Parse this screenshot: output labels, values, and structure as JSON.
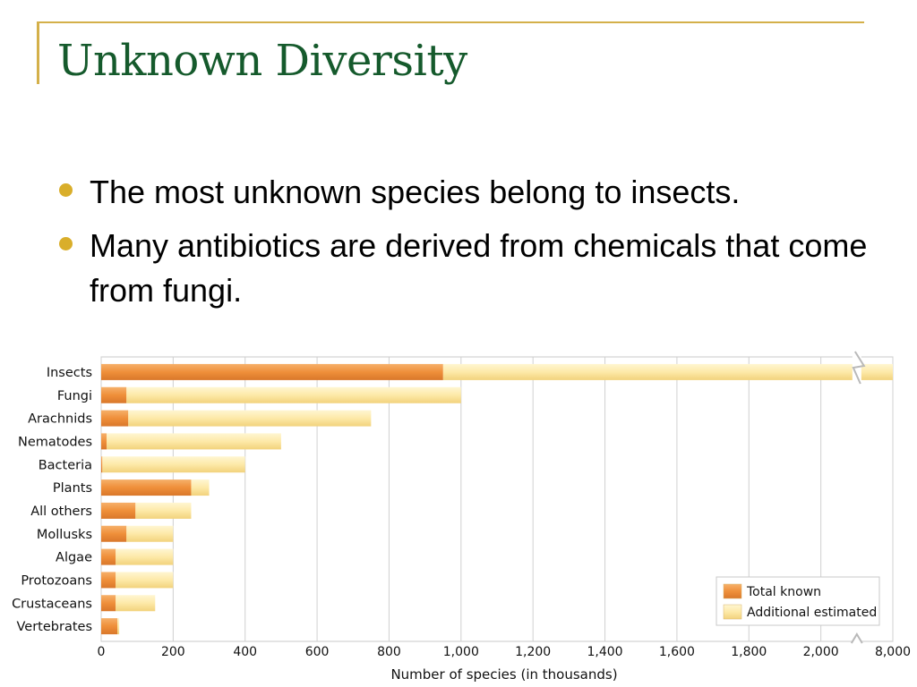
{
  "slide": {
    "title": "Unknown Diversity",
    "bullets": [
      "The most unknown species belong to insects.",
      "Many antibiotics are derived from chemicals that come from fungi."
    ]
  },
  "colors": {
    "title": "#155a2c",
    "frame": "#d4b04a",
    "bullet": "#d9ae2a",
    "known": "#ef8f3a",
    "estimated": "#fde9a8"
  },
  "chart_data": {
    "type": "bar",
    "orientation": "horizontal",
    "stacked": true,
    "categories": [
      "Insects",
      "Fungi",
      "Arachnids",
      "Nematodes",
      "Bacteria",
      "Plants",
      "All others",
      "Mollusks",
      "Algae",
      "Protozoans",
      "Crustaceans",
      "Vertebrates"
    ],
    "series": [
      {
        "name": "Total known",
        "values": [
          950,
          70,
          75,
          15,
          3,
          250,
          95,
          70,
          40,
          40,
          40,
          45
        ]
      },
      {
        "name": "Additional estimated",
        "values": [
          7050,
          930,
          675,
          485,
          397,
          50,
          155,
          130,
          160,
          160,
          110,
          5
        ]
      }
    ],
    "xlabel": "Number of species (in thousands)",
    "ylabel": "",
    "xticks": [
      "0",
      "200",
      "400",
      "600",
      "800",
      "1,000",
      "1,200",
      "1,400",
      "1,600",
      "1,800",
      "2,000",
      "8,000"
    ],
    "xlim": [
      0,
      8000
    ],
    "axis_break": {
      "from": 2100,
      "to": 7900
    },
    "grid": true,
    "legend_position": "bottom-right"
  }
}
